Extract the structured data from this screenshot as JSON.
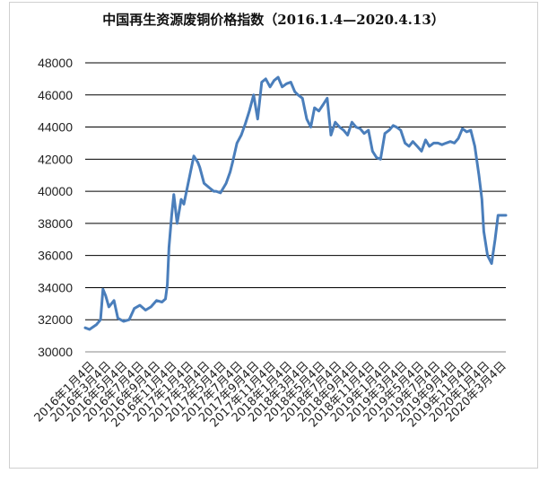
{
  "chart_data": {
    "type": "line",
    "title": "中国再生资源废铜价格指数（2016.1.4—2020.4.13）",
    "xlabel": "",
    "ylabel": "",
    "ylim": [
      30000,
      48000
    ],
    "y_ticks": [
      "30000",
      "32000",
      "34000",
      "36000",
      "38000",
      "40000",
      "42000",
      "44000",
      "46000",
      "48000"
    ],
    "x_tick_labels": [
      "2016年1月4日",
      "2016年3月4日",
      "2016年5月4日",
      "2016年7月4日",
      "2016年9月4日",
      "2016年11月4日",
      "2017年1月4日",
      "2017年3月4日",
      "2017年5月4日",
      "2017年7月4日",
      "2017年9月4日",
      "2017年11月4日",
      "2018年1月4日",
      "2018年3月4日",
      "2018年5月4日",
      "2018年7月4日",
      "2018年9月4日",
      "2018年11月4日",
      "2019年1月4日",
      "2019年3月4日",
      "2019年5月4日",
      "2019年7月4日",
      "2019年9月4日",
      "2019年11月4日",
      "2020年1月4日",
      "2020年3月4日"
    ],
    "grid": true,
    "legend": "none",
    "color": "#4a7ebb",
    "series": [
      {
        "x": [
          "2016-01-04",
          "2016-01-20",
          "2016-02-15",
          "2016-03-01",
          "2016-03-10",
          "2016-03-20",
          "2016-04-01",
          "2016-04-20",
          "2016-05-04",
          "2016-05-25",
          "2016-06-15",
          "2016-07-04",
          "2016-07-25",
          "2016-08-15",
          "2016-09-04",
          "2016-09-25",
          "2016-10-15",
          "2016-10-28",
          "2016-11-04",
          "2016-11-10",
          "2016-11-20",
          "2016-11-28",
          "2016-12-10",
          "2016-12-25",
          "2017-01-04",
          "2017-01-20",
          "2017-02-10",
          "2017-02-25",
          "2017-03-04",
          "2017-03-20",
          "2017-04-10",
          "2017-04-25",
          "2017-05-04",
          "2017-05-20",
          "2017-06-10",
          "2017-06-25",
          "2017-07-04",
          "2017-07-20",
          "2017-08-05",
          "2017-08-20",
          "2017-09-04",
          "2017-09-20",
          "2017-10-05",
          "2017-10-20",
          "2017-11-04",
          "2017-11-20",
          "2017-12-05",
          "2017-12-20",
          "2018-01-04",
          "2018-01-20",
          "2018-02-05",
          "2018-02-20",
          "2018-03-04",
          "2018-03-20",
          "2018-04-05",
          "2018-04-20",
          "2018-05-04",
          "2018-05-20",
          "2018-06-05",
          "2018-06-20",
          "2018-07-04",
          "2018-07-20",
          "2018-08-05",
          "2018-08-20",
          "2018-09-04",
          "2018-09-20",
          "2018-10-05",
          "2018-10-20",
          "2018-11-04",
          "2018-11-20",
          "2018-12-05",
          "2018-12-20",
          "2019-01-04",
          "2019-01-20",
          "2019-02-05",
          "2019-02-20",
          "2019-03-04",
          "2019-03-20",
          "2019-04-05",
          "2019-04-20",
          "2019-05-04",
          "2019-05-20",
          "2019-06-05",
          "2019-06-20",
          "2019-07-04",
          "2019-07-20",
          "2019-08-05",
          "2019-08-20",
          "2019-09-04",
          "2019-09-20",
          "2019-10-05",
          "2019-10-20",
          "2019-11-04",
          "2019-11-20",
          "2019-12-05",
          "2019-12-20",
          "2020-01-04",
          "2020-01-15",
          "2020-01-22",
          "2020-02-05",
          "2020-02-20",
          "2020-03-04",
          "2020-03-15",
          "2020-03-23",
          "2020-04-01",
          "2020-04-13"
        ],
        "y": [
          31500,
          31400,
          31700,
          32000,
          33900,
          33500,
          32800,
          33200,
          32100,
          31900,
          32000,
          32700,
          32900,
          32600,
          32800,
          33200,
          33100,
          33300,
          34200,
          36500,
          38500,
          39800,
          38000,
          39500,
          39200,
          40500,
          42200,
          41800,
          41500,
          40500,
          40200,
          40000,
          40000,
          39900,
          40500,
          41200,
          41800,
          43000,
          43500,
          44200,
          45000,
          46000,
          44500,
          46800,
          47000,
          46500,
          46900,
          47100,
          46500,
          46700,
          46800,
          46200,
          46000,
          45800,
          44500,
          44000,
          45200,
          45000,
          45400,
          45800,
          43500,
          44300,
          44000,
          43800,
          43500,
          44300,
          44000,
          43900,
          43600,
          43800,
          42500,
          42100,
          42000,
          43600,
          43800,
          44100,
          44000,
          43800,
          43000,
          42800,
          43100,
          42800,
          42500,
          43200,
          42800,
          43000,
          43000,
          42900,
          43000,
          43100,
          43000,
          43300,
          43900,
          43700,
          43800,
          42800,
          41000,
          39500,
          37500,
          36000,
          35500,
          37000,
          38500,
          38500,
          38500,
          38500
        ]
      }
    ]
  }
}
